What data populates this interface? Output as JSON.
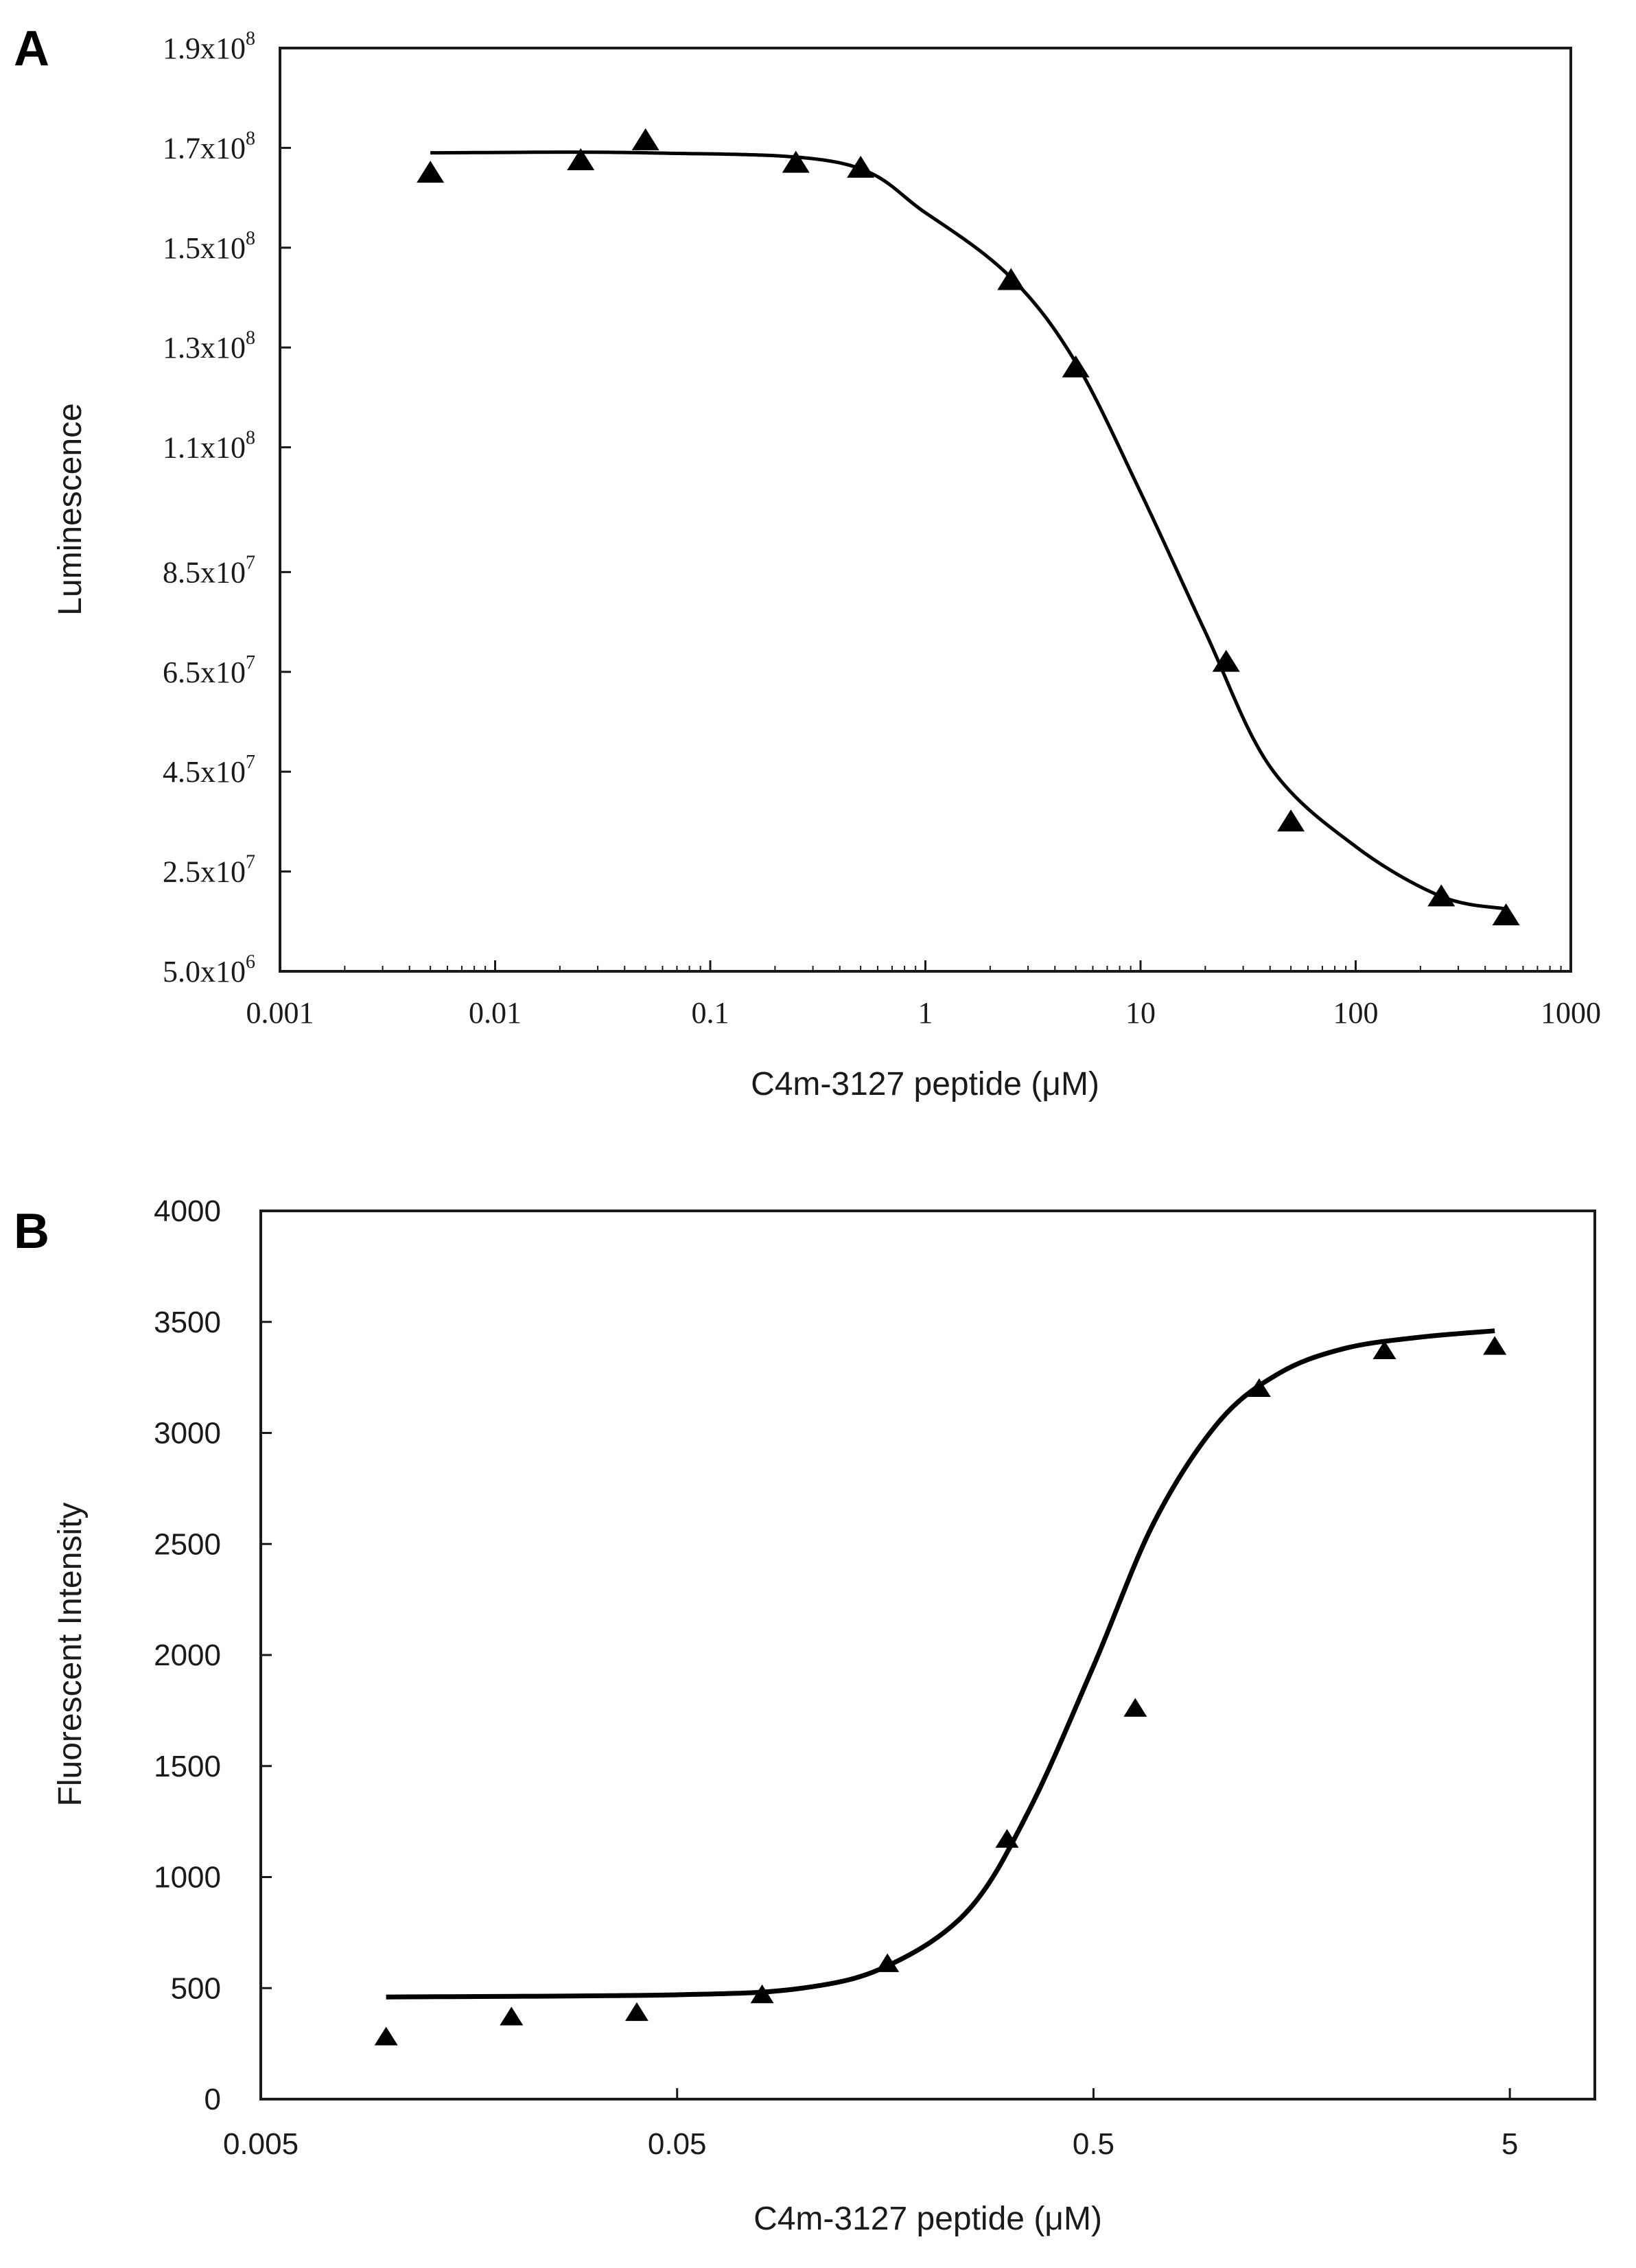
{
  "chart_data": [
    {
      "panel": "A",
      "type": "scatter",
      "xscale": "log",
      "xlabel": "C4m-3127 peptide (μM)",
      "ylabel": "Luminescence",
      "xlim": [
        0.001,
        1000
      ],
      "ylim": [
        5000000,
        190000000
      ],
      "x_ticks": [
        0.001,
        0.01,
        0.1,
        1,
        10,
        100,
        1000
      ],
      "x_tick_labels": [
        "0.001",
        "0.01",
        "0.1",
        "1",
        "10",
        "100",
        "1000"
      ],
      "y_ticks": [
        5000000,
        25000000,
        45000000,
        65000000,
        85000000,
        110000000,
        130000000,
        150000000,
        170000000,
        190000000
      ],
      "y_tick_labels": [
        {
          "mant": "5.0x10",
          "exp": "6"
        },
        {
          "mant": "2.5x10",
          "exp": "7"
        },
        {
          "mant": "4.5x10",
          "exp": "7"
        },
        {
          "mant": "6.5x10",
          "exp": "7"
        },
        {
          "mant": "8.5x10",
          "exp": "7"
        },
        {
          "mant": "1.1x10",
          "exp": "8"
        },
        {
          "mant": "1.3x10",
          "exp": "8"
        },
        {
          "mant": "1.5x10",
          "exp": "8"
        },
        {
          "mant": "1.7x10",
          "exp": "8"
        },
        {
          "mant": "1.9x10",
          "exp": "8"
        }
      ],
      "series": [
        {
          "name": "data",
          "marker": "triangle",
          "x": [
            0.005,
            0.025,
            0.05,
            0.25,
            0.5,
            2.5,
            5,
            25,
            50,
            250,
            500
          ],
          "y": [
            165000000,
            167500000,
            171500000,
            167000000,
            166000000,
            143500000,
            126000000,
            67000000,
            35000000,
            20000000,
            16200000
          ]
        },
        {
          "name": "fit",
          "type": "line",
          "x": [
            0.005,
            0.05,
            0.4,
            1,
            2.5,
            5,
            10,
            20,
            40,
            100,
            250,
            500
          ],
          "y": [
            169000000,
            169000000,
            167000000,
            157000000,
            144000000,
            127000000,
            101000000,
            73000000,
            46000000,
            30000000,
            20000000,
            17500000
          ]
        }
      ]
    },
    {
      "panel": "B",
      "type": "scatter",
      "xscale": "log",
      "xlabel": "C4m-3127 peptide (μM)",
      "ylabel": "Fluorescent Intensity",
      "xlim": [
        0.005,
        8
      ],
      "ylim": [
        0,
        4000
      ],
      "x_ticks": [
        0.005,
        0.05,
        0.5,
        5
      ],
      "x_tick_labels": [
        "0.005",
        "0.05",
        "0.5",
        "5"
      ],
      "y_ticks": [
        0,
        500,
        1000,
        1500,
        2000,
        2500,
        3000,
        3500,
        4000
      ],
      "y_tick_labels": [
        "0",
        "500",
        "1000",
        "1500",
        "2000",
        "2500",
        "3000",
        "3500",
        "4000"
      ],
      "series": [
        {
          "name": "data",
          "marker": "triangle",
          "x": [
            0.01,
            0.02,
            0.04,
            0.08,
            0.16,
            0.31,
            0.63,
            1.25,
            2.5,
            4.6
          ],
          "y": [
            280,
            370,
            390,
            470,
            610,
            1170,
            1760,
            3200,
            3370,
            3390
          ]
        },
        {
          "name": "fit",
          "type": "line",
          "x": [
            0.01,
            0.05,
            0.1,
            0.16,
            0.25,
            0.35,
            0.5,
            0.7,
            1.0,
            1.4,
            2,
            3,
            4.6
          ],
          "y": [
            460,
            470,
            500,
            600,
            850,
            1300,
            1950,
            2600,
            3050,
            3270,
            3380,
            3430,
            3460
          ]
        }
      ]
    }
  ],
  "panel_labels": [
    "A",
    "B"
  ]
}
